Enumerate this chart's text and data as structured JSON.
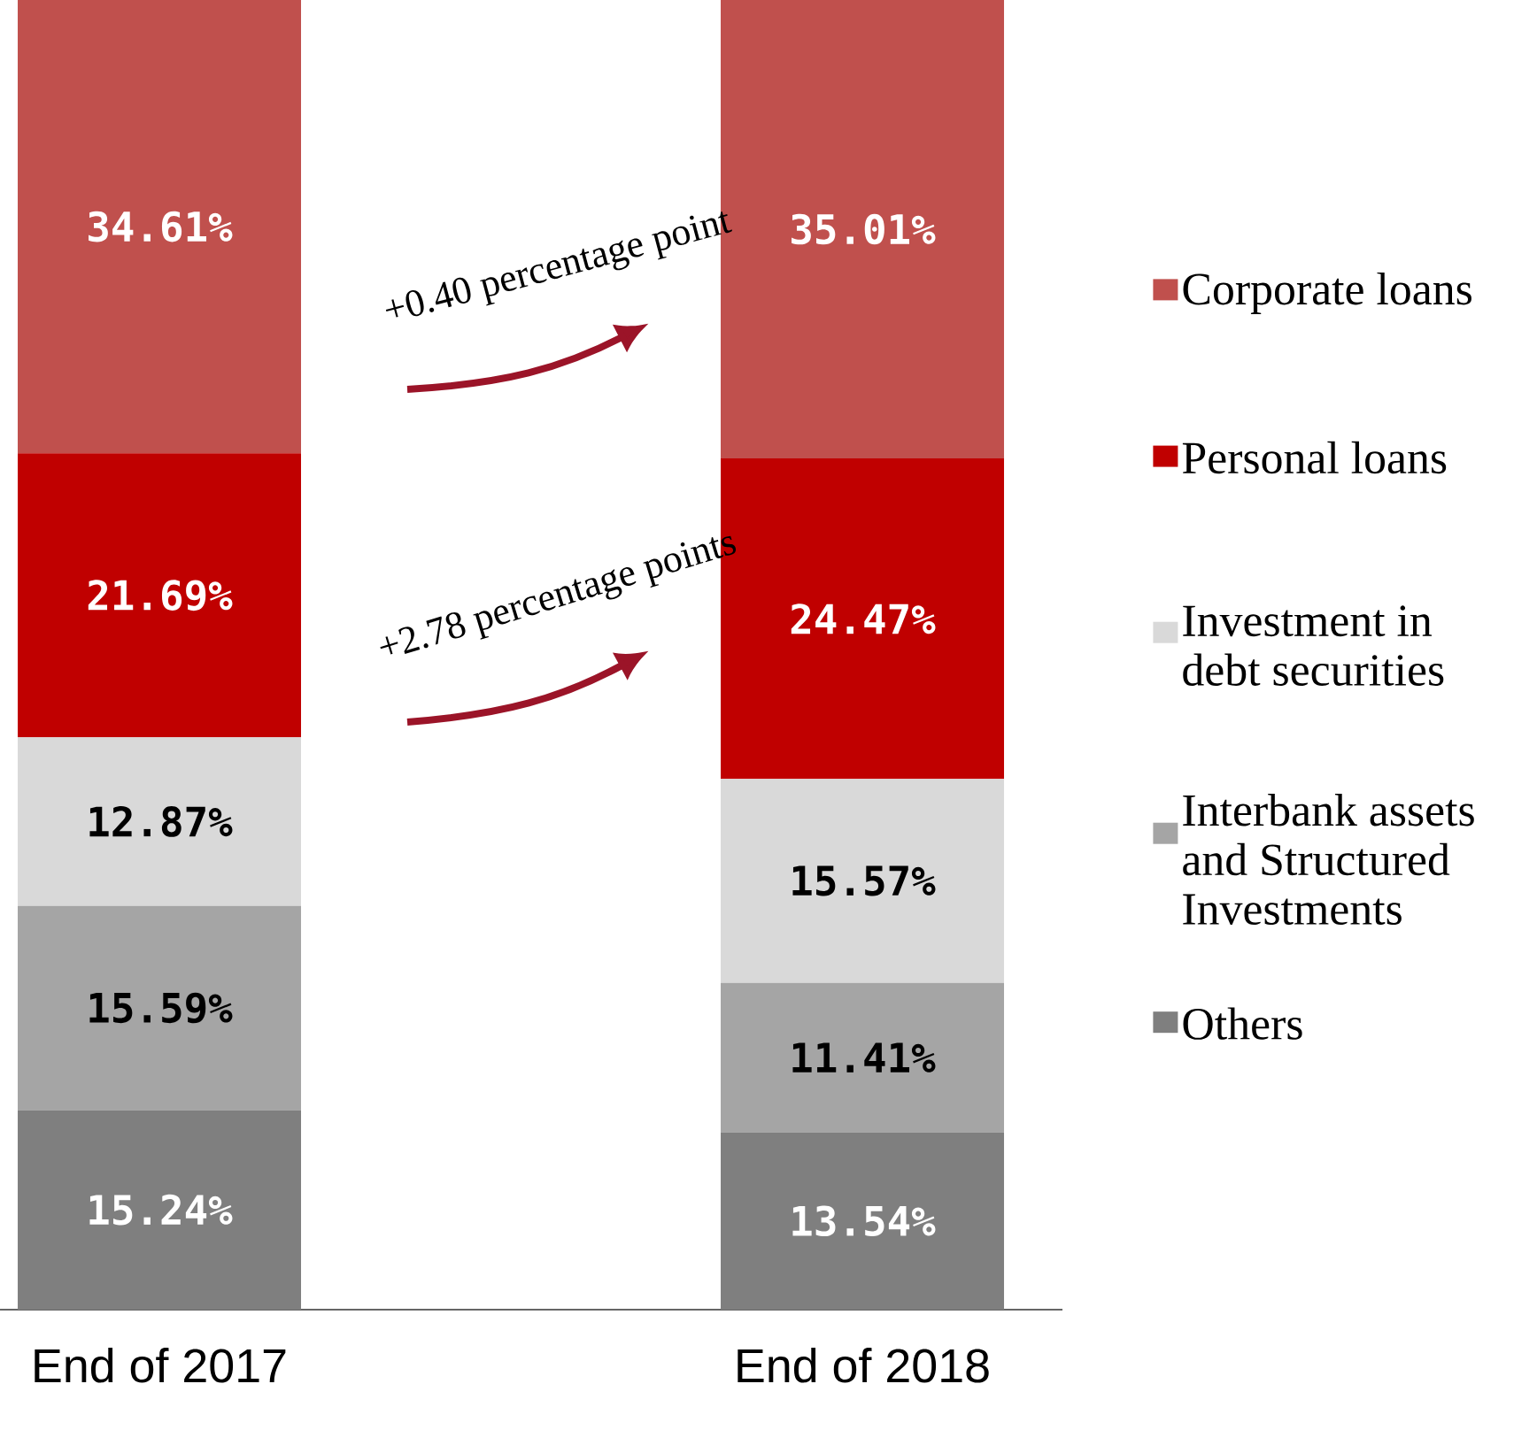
{
  "chart_data": {
    "type": "bar",
    "stacked": true,
    "categories": [
      "End of 2017",
      "End of 2018"
    ],
    "ylim": [
      0,
      100
    ],
    "tick_labels": "x",
    "legend": "right",
    "series": [
      {
        "name": "Others",
        "color": "#7f7f7f",
        "values": [
          15.24,
          13.54
        ],
        "value_labels": [
          "15.24%",
          "13.54%"
        ]
      },
      {
        "name": "Interbank assets and Structured Investments",
        "color": "#a5a5a5",
        "values": [
          15.59,
          11.41
        ],
        "value_labels": [
          "15.59%",
          "11.41%"
        ]
      },
      {
        "name": "Investment in debt securities",
        "color": "#d9d9d9",
        "values": [
          12.87,
          15.57
        ],
        "value_labels": [
          "12.87%",
          "15.57%"
        ]
      },
      {
        "name": "Personal loans",
        "color": "#c00000",
        "values": [
          21.69,
          24.47
        ],
        "value_labels": [
          "21.69%",
          "24.47%"
        ]
      },
      {
        "name": "Corporate loans",
        "color": "#c0504d",
        "values": [
          34.61,
          35.01
        ],
        "value_labels": [
          "34.61%",
          "35.01%"
        ]
      }
    ],
    "annotations": [
      "+0.40 percentage point",
      "+2.78 percentage points"
    ]
  }
}
